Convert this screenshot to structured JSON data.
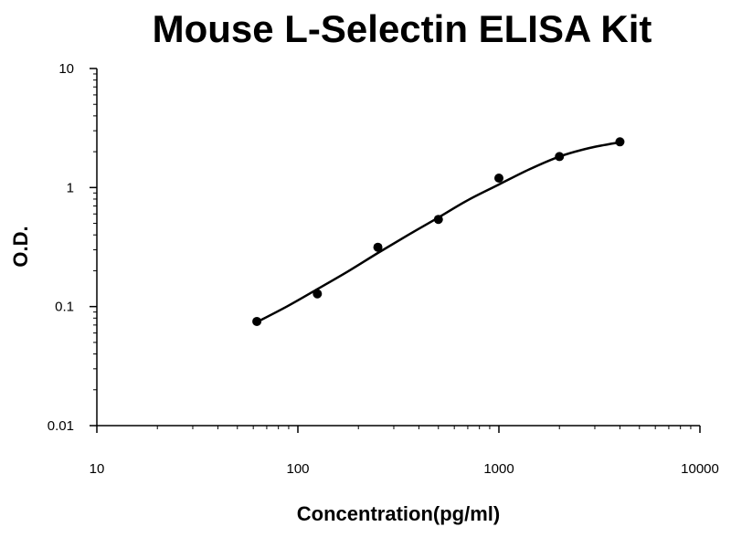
{
  "chart_data": {
    "type": "scatter",
    "title": "Mouse L-Selectin ELISA Kit",
    "xlabel": "Concentration(pg/ml)",
    "ylabel": "O.D.",
    "x_scale": "log",
    "y_scale": "log",
    "xlim": [
      10,
      10000
    ],
    "ylim": [
      0.01,
      10
    ],
    "x_ticks": [
      "10",
      "100",
      "1000",
      "10000"
    ],
    "y_ticks": [
      "10",
      "1",
      "0.1",
      "0.01"
    ],
    "grid": false,
    "legend": "none",
    "point_color": "#000000",
    "series": [
      {
        "points": [
          {
            "x": 62.5,
            "y": 0.075
          },
          {
            "x": 125,
            "y": 0.128
          },
          {
            "x": 250,
            "y": 0.315
          },
          {
            "x": 500,
            "y": 0.54
          },
          {
            "x": 1000,
            "y": 1.2
          },
          {
            "x": 2000,
            "y": 1.82
          },
          {
            "x": 4000,
            "y": 2.42
          }
        ]
      }
    ],
    "fit_curve": [
      {
        "x": 62.5,
        "y": 0.074
      },
      {
        "x": 88,
        "y": 0.1
      },
      {
        "x": 125,
        "y": 0.14
      },
      {
        "x": 177,
        "y": 0.197
      },
      {
        "x": 250,
        "y": 0.282
      },
      {
        "x": 354,
        "y": 0.4
      },
      {
        "x": 500,
        "y": 0.56
      },
      {
        "x": 707,
        "y": 0.79
      },
      {
        "x": 1000,
        "y": 1.06
      },
      {
        "x": 1414,
        "y": 1.42
      },
      {
        "x": 2000,
        "y": 1.82
      },
      {
        "x": 2828,
        "y": 2.15
      },
      {
        "x": 4000,
        "y": 2.4
      }
    ]
  }
}
